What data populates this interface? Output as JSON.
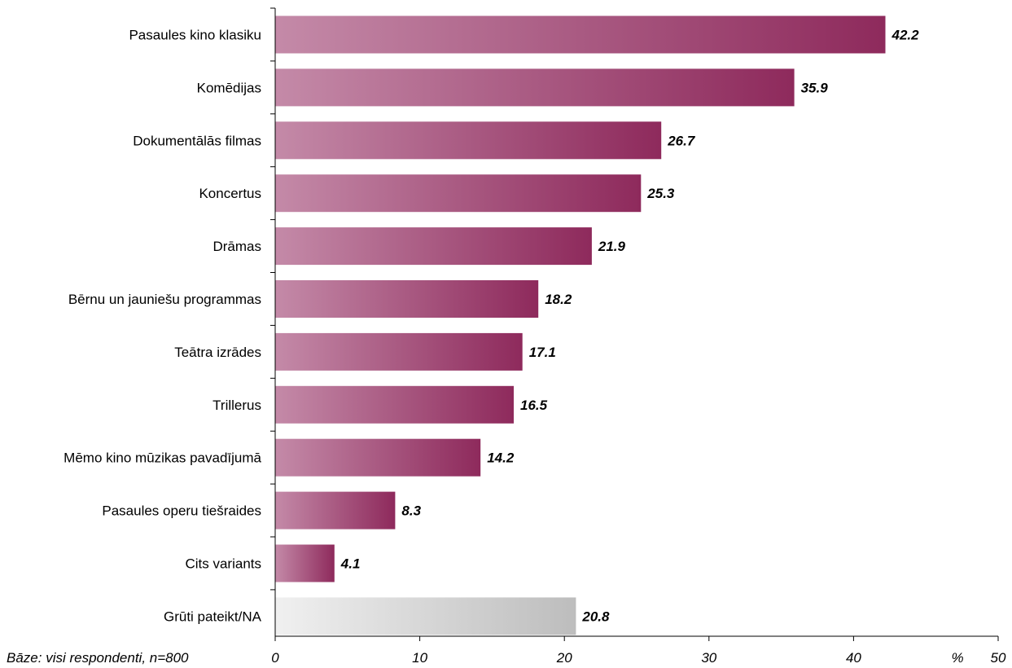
{
  "chart_data": {
    "type": "bar",
    "orientation": "horizontal",
    "categories": [
      "Pasaules kino klasiku",
      "Komēdijas",
      "Dokumentālās filmas",
      "Koncertus",
      "Drāmas",
      "Bērnu un jauniešu programmas",
      "Teātra izrādes",
      "Trillerus",
      "Mēmo kino mūzikas pavadījumā",
      "Pasaules operu tiešraides",
      "Cits variants",
      "Grūti pateikt/NA"
    ],
    "values": [
      42.2,
      35.9,
      26.7,
      25.3,
      21.9,
      18.2,
      17.1,
      16.5,
      14.2,
      8.3,
      4.1,
      20.8
    ],
    "value_labels": [
      "42.2",
      "35.9",
      "26.7",
      "25.3",
      "21.9",
      "18.2",
      "17.1",
      "16.5",
      "14.2",
      "8.3",
      "4.1",
      "20.8"
    ],
    "xlim": [
      0,
      50
    ],
    "xticks": [
      "0",
      "10",
      "20",
      "30",
      "40",
      "50"
    ],
    "xunit": "%",
    "footnote": "Bāze: visi respondenti, n=800",
    "grid": false,
    "colors": {
      "bar_start": "#c48aa8",
      "bar_end": "#8e2a5c",
      "na_start": "#f0f0f0",
      "na_end": "#bdbdbd"
    }
  }
}
